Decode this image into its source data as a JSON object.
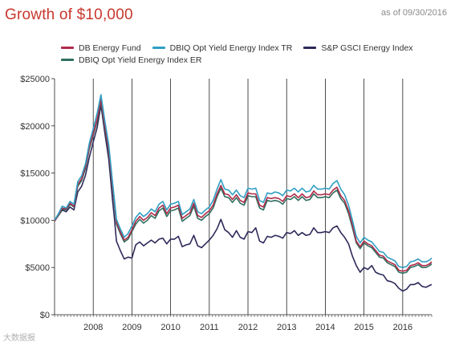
{
  "header": {
    "title": "Growth of $10,000",
    "as_of": "as of 09/30/2016"
  },
  "watermark": "大数据报",
  "chart_data": {
    "type": "line",
    "title": "Growth of $10,000",
    "xlabel": "",
    "ylabel": "",
    "ylim": [
      0,
      25000
    ],
    "xlim": [
      2007.0,
      2016.75
    ],
    "y_ticks": [
      {
        "value": 0,
        "label": "$0"
      },
      {
        "value": 5000,
        "label": "$5000"
      },
      {
        "value": 10000,
        "label": "$10000"
      },
      {
        "value": 15000,
        "label": "$15000"
      },
      {
        "value": 20000,
        "label": "$20000"
      },
      {
        "value": 25000,
        "label": "$25000"
      }
    ],
    "x_ticks": [
      {
        "value": 2008,
        "label": "2008"
      },
      {
        "value": 2009,
        "label": "2009"
      },
      {
        "value": 2010,
        "label": "2010"
      },
      {
        "value": 2011,
        "label": "2011"
      },
      {
        "value": 2012,
        "label": "2012"
      },
      {
        "value": 2013,
        "label": "2013"
      },
      {
        "value": 2014,
        "label": "2014"
      },
      {
        "value": 2015,
        "label": "2015"
      },
      {
        "value": 2016,
        "label": "2016"
      }
    ],
    "vertical_gridlines": true,
    "legend_position": "top",
    "x": [
      2007.0,
      2007.1,
      2007.2,
      2007.3,
      2007.4,
      2007.5,
      2007.6,
      2007.7,
      2007.8,
      2007.9,
      2008.0,
      2008.1,
      2008.2,
      2008.3,
      2008.4,
      2008.5,
      2008.55,
      2008.6,
      2008.7,
      2008.8,
      2008.9,
      2009.0,
      2009.1,
      2009.2,
      2009.3,
      2009.4,
      2009.5,
      2009.6,
      2009.7,
      2009.8,
      2009.9,
      2010.0,
      2010.1,
      2010.2,
      2010.3,
      2010.4,
      2010.5,
      2010.6,
      2010.7,
      2010.8,
      2010.9,
      2011.0,
      2011.1,
      2011.2,
      2011.3,
      2011.4,
      2011.5,
      2011.6,
      2011.7,
      2011.8,
      2011.9,
      2012.0,
      2012.1,
      2012.2,
      2012.3,
      2012.4,
      2012.5,
      2012.6,
      2012.7,
      2012.8,
      2012.9,
      2013.0,
      2013.1,
      2013.2,
      2013.3,
      2013.4,
      2013.5,
      2013.6,
      2013.7,
      2013.8,
      2013.9,
      2014.0,
      2014.1,
      2014.2,
      2014.3,
      2014.4,
      2014.5,
      2014.6,
      2014.7,
      2014.8,
      2014.9,
      2015.0,
      2015.1,
      2015.2,
      2015.3,
      2015.4,
      2015.5,
      2015.6,
      2015.7,
      2015.8,
      2015.9,
      2016.0,
      2016.1,
      2016.2,
      2016.3,
      2016.4,
      2016.5,
      2016.6,
      2016.7,
      2016.75
    ],
    "series": [
      {
        "name": "DB Energy Fund",
        "color": "#b02a4a",
        "values": [
          9900,
          10600,
          11300,
          11200,
          11800,
          11500,
          13800,
          14400,
          15700,
          17800,
          19200,
          20700,
          22800,
          20000,
          17500,
          13500,
          11800,
          9800,
          8800,
          7900,
          8200,
          9000,
          9900,
          10400,
          10000,
          10300,
          10800,
          10500,
          11300,
          11600,
          10700,
          11300,
          11400,
          11600,
          10200,
          10500,
          10800,
          11800,
          10500,
          10300,
          10700,
          11000,
          11600,
          12800,
          13700,
          12800,
          12700,
          12200,
          12700,
          12100,
          11900,
          12900,
          12800,
          12800,
          11600,
          11400,
          12400,
          12300,
          12400,
          12300,
          12000,
          12600,
          12500,
          12800,
          12400,
          12800,
          12400,
          12500,
          13100,
          12700,
          12700,
          12800,
          12700,
          13200,
          13500,
          12600,
          12100,
          11000,
          9500,
          7800,
          7200,
          7800,
          7500,
          7300,
          6800,
          6300,
          6200,
          5700,
          5500,
          5300,
          4700,
          4600,
          4700,
          5200,
          5300,
          5500,
          5200,
          5200,
          5400,
          5600
        ]
      },
      {
        "name": "DBIQ Opt Yield Energy Index TR",
        "color": "#2f9fc4",
        "values": [
          10000,
          10700,
          11500,
          11300,
          12000,
          11700,
          14100,
          14700,
          16000,
          18200,
          19700,
          21300,
          23300,
          20500,
          18000,
          14000,
          12100,
          10100,
          9100,
          8200,
          8600,
          9400,
          10300,
          10800,
          10400,
          10700,
          11200,
          10900,
          11700,
          12000,
          11100,
          11700,
          11800,
          12000,
          10600,
          10900,
          11200,
          12200,
          10900,
          10700,
          11100,
          11400,
          12100,
          13300,
          14300,
          13300,
          13200,
          12700,
          13200,
          12600,
          12400,
          13400,
          13300,
          13400,
          12100,
          11900,
          12900,
          12800,
          13000,
          12900,
          12600,
          13200,
          13100,
          13400,
          13000,
          13400,
          13000,
          13100,
          13700,
          13300,
          13300,
          13400,
          13300,
          13900,
          14200,
          13300,
          12700,
          11600,
          10000,
          8300,
          7600,
          8200,
          7900,
          7700,
          7200,
          6700,
          6600,
          6100,
          5900,
          5700,
          5100,
          5000,
          5100,
          5600,
          5700,
          5900,
          5600,
          5600,
          5800,
          6000
        ]
      },
      {
        "name": "S&P GSCI Energy Index",
        "color": "#2d2a5a",
        "values": [
          10000,
          10500,
          11100,
          10900,
          11400,
          11100,
          13000,
          13600,
          14800,
          16700,
          18300,
          19800,
          22200,
          19200,
          16500,
          12100,
          10100,
          7800,
          6800,
          5900,
          6100,
          6000,
          7400,
          7700,
          7300,
          7600,
          7900,
          7600,
          8000,
          8100,
          7500,
          8000,
          8000,
          8300,
          7200,
          7400,
          7500,
          8400,
          7300,
          7100,
          7500,
          7900,
          8400,
          9100,
          10100,
          9000,
          8700,
          8200,
          8900,
          8200,
          8000,
          8800,
          8700,
          9200,
          7800,
          7600,
          8300,
          8200,
          8400,
          8300,
          8100,
          8700,
          8600,
          8900,
          8400,
          8700,
          8400,
          8500,
          9200,
          8700,
          8700,
          8800,
          8700,
          9200,
          9400,
          8700,
          8200,
          7500,
          6200,
          5200,
          4500,
          5000,
          4800,
          5200,
          4500,
          4300,
          4200,
          3600,
          3500,
          3300,
          2800,
          2500,
          2700,
          3200,
          3200,
          3400,
          3000,
          2900,
          3100,
          3200
        ]
      },
      {
        "name": "DBIQ Opt Yield Energy Index ER",
        "color": "#2f6f5f",
        "values": [
          9900,
          10500,
          11200,
          11100,
          11700,
          11400,
          13600,
          14200,
          15500,
          17600,
          19000,
          20500,
          22600,
          19800,
          17300,
          13300,
          11600,
          9600,
          8600,
          7700,
          8000,
          8800,
          9600,
          10100,
          9700,
          10000,
          10500,
          10200,
          11000,
          11300,
          10400,
          11000,
          11100,
          11300,
          9900,
          10200,
          10500,
          11500,
          10200,
          10000,
          10400,
          10700,
          11300,
          12500,
          13400,
          12500,
          12400,
          11900,
          12400,
          11800,
          11600,
          12600,
          12500,
          12500,
          11300,
          11100,
          12100,
          12000,
          12100,
          12000,
          11700,
          12300,
          12200,
          12500,
          12100,
          12500,
          12100,
          12200,
          12800,
          12400,
          12400,
          12500,
          12400,
          12900,
          13200,
          12300,
          11800,
          10700,
          9200,
          7600,
          7000,
          7600,
          7300,
          7100,
          6600,
          6100,
          6000,
          5500,
          5300,
          5100,
          4500,
          4400,
          4500,
          5000,
          5100,
          5300,
          5000,
          5000,
          5200,
          5400
        ]
      }
    ]
  },
  "legend": [
    {
      "label": "DB Energy Fund",
      "color": "#b02a4a"
    },
    {
      "label": "DBIQ Opt Yield Energy Index TR",
      "color": "#2f9fc4"
    },
    {
      "label": "S&P GSCI Energy Index",
      "color": "#2d2a5a"
    },
    {
      "label": "DBIQ Opt Yield Energy Index ER",
      "color": "#2f6f5f"
    }
  ]
}
